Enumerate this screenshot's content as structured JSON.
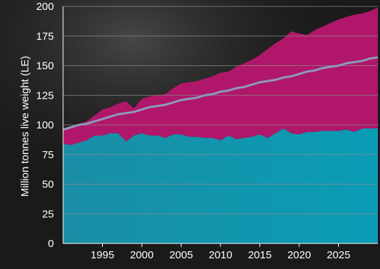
{
  "chart_data": {
    "type": "area",
    "title": "",
    "xlabel": "",
    "ylabel": "Million tonnes live weight (LE)",
    "xlim": [
      1990,
      2030
    ],
    "ylim": [
      0,
      200
    ],
    "x_ticks": [
      1995,
      2000,
      2005,
      2010,
      2015,
      2020,
      2025
    ],
    "y_ticks": [
      0,
      25,
      50,
      75,
      100,
      125,
      150,
      175,
      200
    ],
    "grid": true,
    "legend": "none",
    "colors": {
      "background": "#1a1a1a",
      "lower_area": "#0a9cb5",
      "upper_area": "#b0176a",
      "line": "#8b9bbd",
      "grid": "#8c8c8c",
      "text": "#ffffff"
    },
    "x": [
      1990,
      1991,
      1992,
      1993,
      1994,
      1995,
      1996,
      1997,
      1998,
      1999,
      2000,
      2001,
      2002,
      2003,
      2004,
      2005,
      2006,
      2007,
      2008,
      2009,
      2010,
      2011,
      2012,
      2013,
      2014,
      2015,
      2016,
      2017,
      2018,
      2019,
      2020,
      2021,
      2022,
      2023,
      2024,
      2025,
      2026,
      2027,
      2028,
      2029,
      2030
    ],
    "series": [
      {
        "values": [
          84,
          83,
          85,
          87,
          91,
          91,
          93,
          93,
          86,
          91,
          93,
          91,
          91,
          89,
          92,
          92,
          90,
          90,
          89,
          89,
          87,
          91,
          88,
          89,
          90,
          92,
          89,
          93,
          97,
          93,
          92,
          94,
          94,
          95,
          95,
          95,
          96,
          94,
          97,
          97,
          97
        ]
      },
      {
        "values": [
          97,
          99,
          101,
          103,
          108,
          113,
          115,
          118,
          120,
          114,
          122,
          124,
          125,
          126,
          131,
          135,
          136,
          137,
          139,
          141,
          144,
          145,
          149,
          152,
          155,
          159,
          164,
          169,
          173,
          179,
          177,
          176,
          180,
          183,
          186,
          189,
          191,
          193,
          194,
          196,
          199
        ]
      },
      {
        "values": [
          96,
          98,
          100,
          101,
          103,
          105,
          107,
          109,
          110,
          111,
          113,
          115,
          116,
          117,
          119,
          121,
          122,
          123,
          125,
          126,
          128,
          129,
          131,
          132,
          134,
          136,
          137,
          138,
          140,
          141,
          143,
          145,
          146,
          148,
          149,
          150,
          152,
          153,
          154,
          156,
          157
        ]
      }
    ]
  }
}
